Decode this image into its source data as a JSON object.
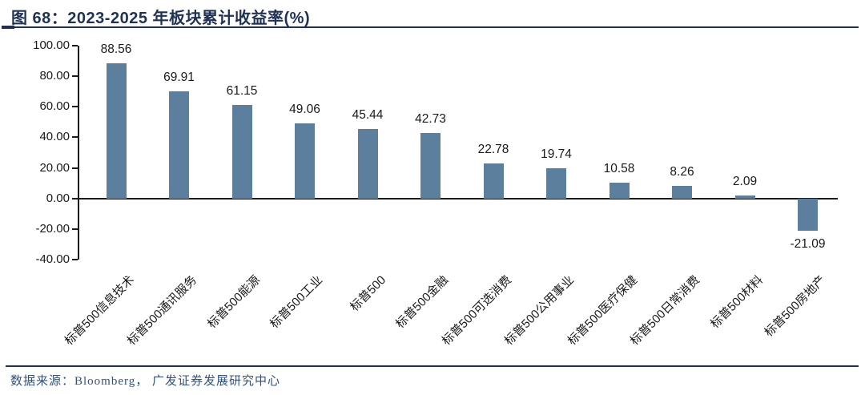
{
  "title": "图 68：2023-2025 年板块累计收益率(%)",
  "source": "数据来源：Bloomberg， 广发证券发展研究中心",
  "colors": {
    "bar": "#5C7F9E",
    "title": "#1F3154",
    "rule": "#1F3154",
    "axis": "#1a1a1a",
    "label": "#1a1a1a",
    "source_text": "#33517A"
  },
  "chart_data": {
    "type": "bar",
    "title": "2023-2025 年板块累计收益率(%)",
    "categories": [
      "标普500信息技术",
      "标普500通讯服务",
      "标普500能源",
      "标普500工业",
      "标普500",
      "标普500金融",
      "标普500可选消费",
      "标普500公用事业",
      "标普500医疗保健",
      "标普500日常消费",
      "标普500材料",
      "标普500房地产"
    ],
    "values": [
      88.56,
      69.91,
      61.15,
      49.06,
      45.44,
      42.73,
      22.78,
      19.74,
      10.58,
      8.26,
      2.09,
      -21.09
    ],
    "xlabel": "",
    "ylabel": "",
    "ylim": [
      -40,
      100
    ],
    "ytick_step": 20,
    "ytick_labels": [
      "100.00",
      "80.00",
      "60.00",
      "40.00",
      "20.00",
      "0.00",
      "-20.00",
      "-40.00"
    ],
    "grid": false,
    "legend": false,
    "value_labels_shown": true,
    "category_label_rotation_deg": 45
  }
}
